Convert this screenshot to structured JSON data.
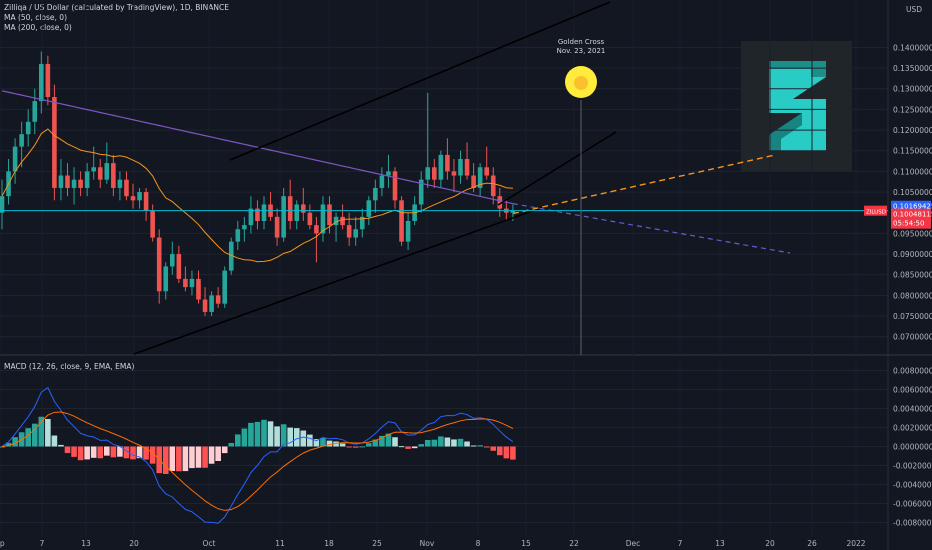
{
  "header": {
    "symbol_line": "Zilliqa / US Dollar (calculated by TradingView), 1D, BINANCE",
    "ma50": "MA (50, close, 0)",
    "ma200": "MA (200, close, 0)",
    "currency": "USD"
  },
  "annotation": {
    "title": "Golden Cross",
    "date": "Nov. 23, 2021"
  },
  "price_badges": {
    "ma200_value": "0.10169425",
    "ma200_color": "#2962ff",
    "last_value": "0.10048115",
    "countdown": "05:54:50",
    "side_tag": "ZILUSD",
    "last_color": "#f23645"
  },
  "macd_label": "MACD (12, 26, close, 9, EMA, EMA)",
  "colors": {
    "background": "#131722",
    "up": "#26a69a",
    "down": "#ef5350",
    "ma50": "#f7931a",
    "ma200": "#7e57c2",
    "macd": "#2962ff",
    "signal": "#ff6d00",
    "price_line": "#00bcd4"
  },
  "chart_data": [
    {
      "type": "candlestick",
      "title": "Zilliqa / US Dollar (calculated by TradingView), 1D, BINANCE",
      "x_ticks": [
        "ep",
        "7",
        "13",
        "20",
        "Oct",
        "11",
        "18",
        "25",
        "Nov",
        "8",
        "15",
        "22",
        "Dec",
        "7",
        "13",
        "20",
        "26",
        "2022"
      ],
      "y_ticks": [
        "0.14000000",
        "0.13500000",
        "0.13000000",
        "0.12500000",
        "0.12000000",
        "0.11500000",
        "0.11000000",
        "0.10500000",
        "0.09500000",
        "0.09000000",
        "0.08500000",
        "0.08000000",
        "0.07500000",
        "0.07000000"
      ],
      "ylim": [
        0.068,
        0.143
      ],
      "ohlc": [
        [
          0.1,
          0.108,
          0.096,
          0.104
        ],
        [
          0.104,
          0.113,
          0.102,
          0.11
        ],
        [
          0.11,
          0.118,
          0.107,
          0.116
        ],
        [
          0.116,
          0.122,
          0.111,
          0.119
        ],
        [
          0.119,
          0.125,
          0.116,
          0.122
        ],
        [
          0.122,
          0.13,
          0.119,
          0.127
        ],
        [
          0.127,
          0.139,
          0.124,
          0.136
        ],
        [
          0.136,
          0.138,
          0.126,
          0.128
        ],
        [
          0.128,
          0.131,
          0.103,
          0.106
        ],
        [
          0.106,
          0.113,
          0.103,
          0.109
        ],
        [
          0.109,
          0.112,
          0.104,
          0.106
        ],
        [
          0.106,
          0.111,
          0.102,
          0.108
        ],
        [
          0.108,
          0.11,
          0.104,
          0.106
        ],
        [
          0.106,
          0.112,
          0.104,
          0.11
        ],
        [
          0.11,
          0.116,
          0.108,
          0.111
        ],
        [
          0.111,
          0.113,
          0.106,
          0.108
        ],
        [
          0.108,
          0.117,
          0.107,
          0.112
        ],
        [
          0.112,
          0.114,
          0.104,
          0.106
        ],
        [
          0.106,
          0.11,
          0.103,
          0.108
        ],
        [
          0.108,
          0.11,
          0.103,
          0.104
        ],
        [
          0.104,
          0.107,
          0.101,
          0.103
        ],
        [
          0.103,
          0.106,
          0.101,
          0.105
        ],
        [
          0.105,
          0.106,
          0.098,
          0.1005
        ],
        [
          0.1005,
          0.102,
          0.093,
          0.094
        ],
        [
          0.094,
          0.096,
          0.078,
          0.081
        ],
        [
          0.081,
          0.088,
          0.079,
          0.087
        ],
        [
          0.087,
          0.093,
          0.085,
          0.09
        ],
        [
          0.09,
          0.092,
          0.083,
          0.084
        ],
        [
          0.084,
          0.087,
          0.081,
          0.082
        ],
        [
          0.082,
          0.086,
          0.08,
          0.084
        ],
        [
          0.084,
          0.086,
          0.078,
          0.079
        ],
        [
          0.079,
          0.082,
          0.075,
          0.076
        ],
        [
          0.076,
          0.081,
          0.075,
          0.08
        ],
        [
          0.08,
          0.082,
          0.077,
          0.078
        ],
        [
          0.078,
          0.087,
          0.077,
          0.086
        ],
        [
          0.086,
          0.094,
          0.085,
          0.093
        ],
        [
          0.093,
          0.098,
          0.091,
          0.096
        ],
        [
          0.096,
          0.099,
          0.093,
          0.097
        ],
        [
          0.097,
          0.104,
          0.095,
          0.101
        ],
        [
          0.101,
          0.103,
          0.096,
          0.098
        ],
        [
          0.098,
          0.104,
          0.096,
          0.102
        ],
        [
          0.102,
          0.105,
          0.098,
          0.099
        ],
        [
          0.099,
          0.101,
          0.092,
          0.094
        ],
        [
          0.094,
          0.106,
          0.093,
          0.104
        ],
        [
          0.104,
          0.108,
          0.096,
          0.098
        ],
        [
          0.098,
          0.103,
          0.096,
          0.102
        ],
        [
          0.102,
          0.106,
          0.098,
          0.1
        ],
        [
          0.1,
          0.102,
          0.096,
          0.097
        ],
        [
          0.097,
          0.099,
          0.088,
          0.095
        ],
        [
          0.095,
          0.104,
          0.093,
          0.102
        ],
        [
          0.102,
          0.104,
          0.095,
          0.097
        ],
        [
          0.097,
          0.1,
          0.093,
          0.099
        ],
        [
          0.099,
          0.102,
          0.096,
          0.097
        ],
        [
          0.097,
          0.1,
          0.092,
          0.094
        ],
        [
          0.094,
          0.099,
          0.092,
          0.096
        ],
        [
          0.096,
          0.101,
          0.094,
          0.099
        ],
        [
          0.099,
          0.104,
          0.097,
          0.103
        ],
        [
          0.103,
          0.108,
          0.1,
          0.106
        ],
        [
          0.106,
          0.111,
          0.104,
          0.109
        ],
        [
          0.109,
          0.114,
          0.106,
          0.11
        ],
        [
          0.11,
          0.111,
          0.101,
          0.103
        ],
        [
          0.103,
          0.104,
          0.092,
          0.093
        ],
        [
          0.093,
          0.1,
          0.091,
          0.098
        ],
        [
          0.098,
          0.104,
          0.097,
          0.102
        ],
        [
          0.102,
          0.11,
          0.1,
          0.108
        ],
        [
          0.108,
          0.129,
          0.106,
          0.111
        ],
        [
          0.111,
          0.113,
          0.106,
          0.108
        ],
        [
          0.108,
          0.115,
          0.106,
          0.114
        ],
        [
          0.114,
          0.118,
          0.108,
          0.11
        ],
        [
          0.11,
          0.113,
          0.105,
          0.109
        ],
        [
          0.109,
          0.115,
          0.107,
          0.113
        ],
        [
          0.113,
          0.117,
          0.108,
          0.109
        ],
        [
          0.109,
          0.112,
          0.105,
          0.106
        ],
        [
          0.106,
          0.112,
          0.104,
          0.111
        ],
        [
          0.111,
          0.116,
          0.108,
          0.109
        ],
        [
          0.109,
          0.111,
          0.102,
          0.104
        ],
        [
          0.104,
          0.106,
          0.099,
          0.101
        ],
        [
          0.101,
          0.103,
          0.098,
          0.1
        ],
        [
          0.1,
          0.102,
          0.098,
          0.1005
        ]
      ]
    },
    {
      "type": "line",
      "title": "MACD (12, 26, close, 9, EMA, EMA)",
      "y_ticks": [
        "0.00800000",
        "0.00600000",
        "0.00400000",
        "0.00200000",
        "0.00000000",
        "-0.00200000",
        "-0.00400000",
        "-0.00600000",
        "-0.00800000"
      ],
      "ylim": [
        -0.009,
        0.009
      ]
    }
  ]
}
